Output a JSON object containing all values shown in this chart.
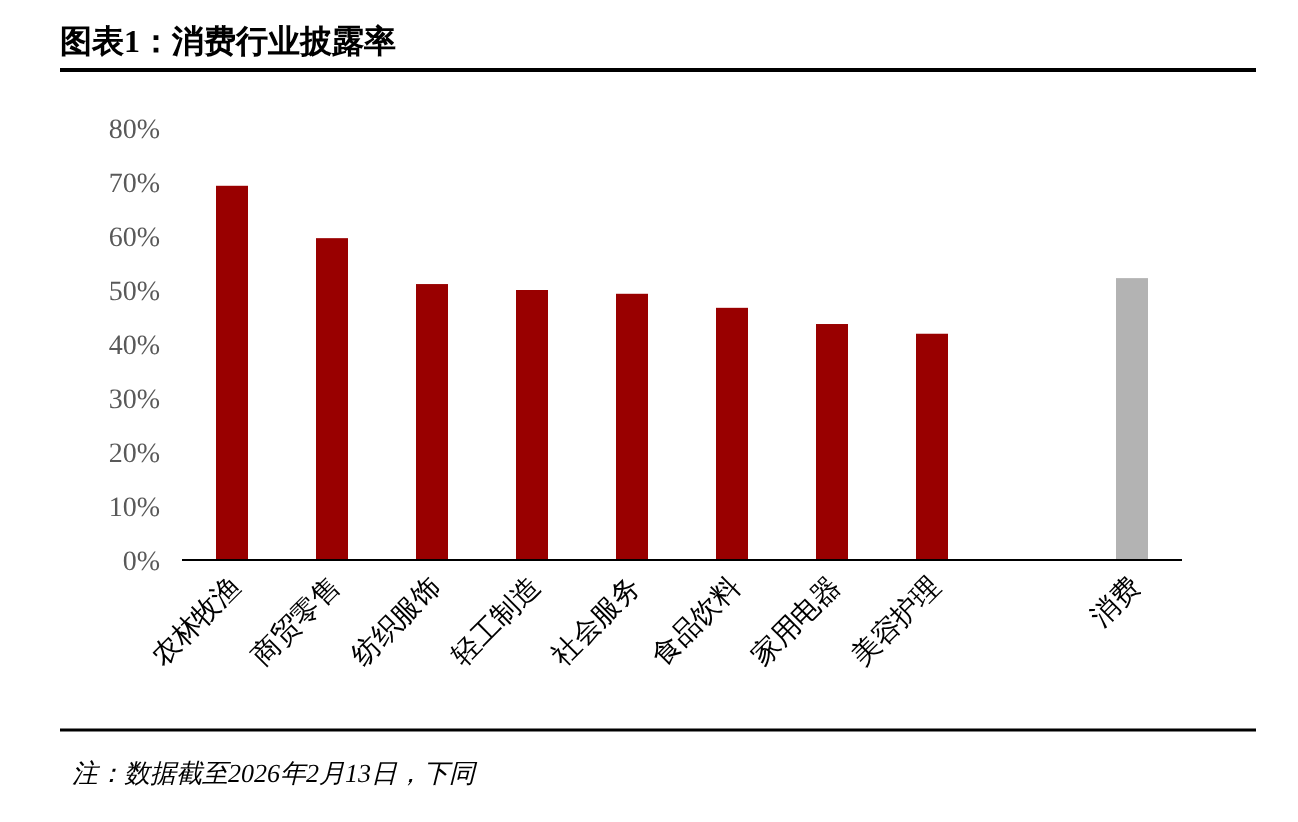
{
  "chart_data": {
    "type": "bar",
    "title": "图表1：消费行业披露率",
    "categories": [
      "农林牧渔",
      "商贸零售",
      "纺织服饰",
      "轻工制造",
      "社会服务",
      "食品饮料",
      "家用电器",
      "美容护理",
      null,
      "消费"
    ],
    "values": [
      69.3,
      59.6,
      51.1,
      50,
      49.3,
      46.7,
      43.7,
      41.9,
      null,
      52.2
    ],
    "colors": [
      "#990000",
      "#990000",
      "#990000",
      "#990000",
      "#990000",
      "#990000",
      "#990000",
      "#990000",
      null,
      "#b3b3b3"
    ],
    "ylim": [
      0,
      80
    ],
    "yticks": [
      {
        "value": 0,
        "label": "0%"
      },
      {
        "value": 10,
        "label": "10%"
      },
      {
        "value": 20,
        "label": "20%"
      },
      {
        "value": 30,
        "label": "30%"
      },
      {
        "value": 40,
        "label": "40%"
      },
      {
        "value": 50,
        "label": "50%"
      },
      {
        "value": 60,
        "label": "60%"
      },
      {
        "value": 70,
        "label": "70%"
      },
      {
        "value": 80,
        "label": "80%"
      }
    ],
    "grid": false,
    "annotations": [
      "注：数据截至2026年2月13日，下同"
    ]
  }
}
